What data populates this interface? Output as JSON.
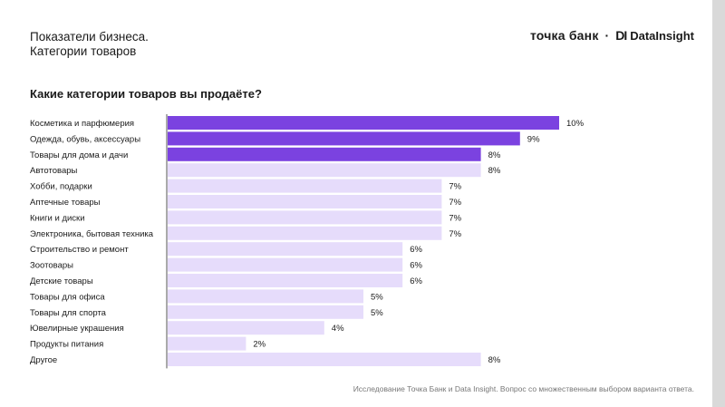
{
  "header": {
    "title_line1": "Показатели бизнеса.",
    "title_line2": "Категории товаров"
  },
  "logo": {
    "bank": "точка банк",
    "separator": "·",
    "partner_mark": "DI",
    "partner": "DataInsight"
  },
  "colors": {
    "highlight": "#7b42e0",
    "normal": "#e6dcfb",
    "axis": "#555555"
  },
  "chart_data": {
    "type": "bar",
    "orientation": "horizontal",
    "title": "Какие категории товаров вы продаёте?",
    "categories": [
      "Косметика и парфюмерия",
      "Одежда, обувь, аксессуары",
      "Товары для дома и дачи",
      "Автотовары",
      "Хобби, подарки",
      "Аптечные товары",
      "Книги и диски",
      "Электроника, бытовая техника",
      "Строительство и ремонт",
      "Зоотовары",
      "Детские товары",
      "Товары для офиса",
      "Товары для спорта",
      "Ювелирные украшения",
      "Продукты питания",
      "Другое"
    ],
    "values": [
      10,
      9,
      8,
      8,
      7,
      7,
      7,
      7,
      6,
      6,
      6,
      5,
      5,
      4,
      2,
      8
    ],
    "value_labels": [
      "10%",
      "9%",
      "8%",
      "8%",
      "7%",
      "7%",
      "7%",
      "7%",
      "6%",
      "6%",
      "6%",
      "5%",
      "5%",
      "4%",
      "2%",
      "8%"
    ],
    "highlighted": [
      true,
      true,
      true,
      false,
      false,
      false,
      false,
      false,
      false,
      false,
      false,
      false,
      false,
      false,
      false,
      false
    ],
    "xlim": [
      0,
      10
    ],
    "grid": false,
    "legend": "none"
  },
  "footnote": "Исследование Точка Банк и Data Insight. Вопрос со множественным выбором варианта ответа."
}
